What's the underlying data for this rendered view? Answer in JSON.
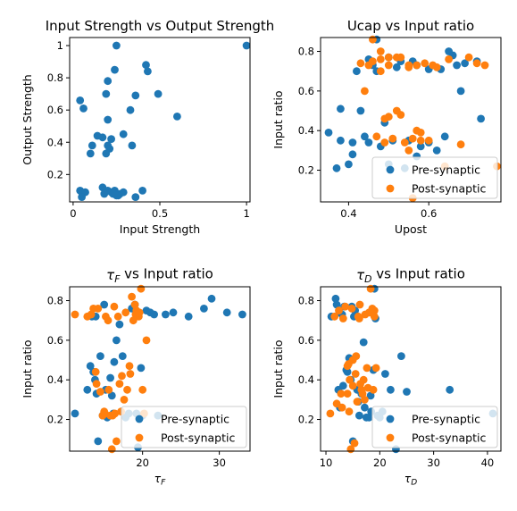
{
  "colors": {
    "pre": "#1f77b4",
    "post": "#ff7f0e"
  },
  "chart_data": [
    {
      "type": "scatter",
      "title": "Input Strength vs Output Strength",
      "xlabel": "Input Strength",
      "ylabel": "Output Strength",
      "xlim": [
        -0.02,
        1.02
      ],
      "ylim": [
        0.03,
        1.05
      ],
      "xticks": [
        0.0,
        0.5,
        1.0
      ],
      "yticks": [
        0.2,
        0.4,
        0.6,
        0.8,
        1.0
      ],
      "legend": null,
      "series": [
        {
          "color": "#1f77b4",
          "x": [
            0.25,
            1.0,
            0.42,
            0.43,
            0.24,
            0.2,
            0.49,
            0.36,
            0.19,
            0.6,
            0.33,
            0.04,
            0.06,
            0.29,
            0.14,
            0.2,
            0.17,
            0.22,
            0.2,
            0.11,
            0.1,
            0.34,
            0.21,
            0.19,
            0.04,
            0.05,
            0.07,
            0.05,
            0.17,
            0.2,
            0.22,
            0.24,
            0.27,
            0.29,
            0.26,
            0.18,
            0.36,
            0.4,
            0.23,
            0.25
          ],
          "y": [
            1.0,
            1.0,
            0.88,
            0.84,
            0.85,
            0.78,
            0.7,
            0.69,
            0.7,
            0.56,
            0.6,
            0.66,
            0.61,
            0.45,
            0.44,
            0.54,
            0.43,
            0.42,
            0.38,
            0.38,
            0.33,
            0.38,
            0.36,
            0.33,
            0.1,
            0.09,
            0.09,
            0.06,
            0.12,
            0.1,
            0.09,
            0.1,
            0.08,
            0.09,
            0.07,
            0.08,
            0.06,
            0.1,
            0.08,
            0.07
          ]
        }
      ]
    },
    {
      "type": "scatter",
      "title": "Ucap vs Input ratio",
      "xlabel": "Upost",
      "ylabel": "Input ratio",
      "xlim": [
        0.33,
        0.78
      ],
      "ylim": [
        0.04,
        0.87
      ],
      "xticks": [
        0.4,
        0.6
      ],
      "yticks": [
        0.2,
        0.4,
        0.6,
        0.8
      ],
      "legend": "bottom-right",
      "series": [
        {
          "name": "Pre-synaptic",
          "color": "#1f77b4",
          "x": [
            0.35,
            0.37,
            0.38,
            0.38,
            0.4,
            0.41,
            0.41,
            0.42,
            0.43,
            0.44,
            0.45,
            0.45,
            0.46,
            0.47,
            0.48,
            0.49,
            0.5,
            0.5,
            0.51,
            0.52,
            0.53,
            0.54,
            0.55,
            0.56,
            0.57,
            0.58,
            0.6,
            0.6,
            0.62,
            0.63,
            0.64,
            0.65,
            0.66,
            0.67,
            0.68,
            0.69,
            0.72,
            0.73,
            0.57,
            0.47
          ],
          "y": [
            0.39,
            0.21,
            0.35,
            0.51,
            0.23,
            0.34,
            0.28,
            0.7,
            0.5,
            0.37,
            0.34,
            0.76,
            0.73,
            0.86,
            0.32,
            0.44,
            0.23,
            0.77,
            0.35,
            0.72,
            0.75,
            0.21,
            0.35,
            0.75,
            0.73,
            0.32,
            0.71,
            0.34,
            0.3,
            0.71,
            0.37,
            0.8,
            0.78,
            0.73,
            0.6,
            0.74,
            0.75,
            0.46,
            0.27,
            0.7
          ]
        },
        {
          "name": "Post-synaptic",
          "color": "#ff7f0e",
          "x": [
            0.44,
            0.45,
            0.46,
            0.47,
            0.48,
            0.48,
            0.49,
            0.49,
            0.5,
            0.5,
            0.51,
            0.52,
            0.53,
            0.54,
            0.55,
            0.55,
            0.56,
            0.57,
            0.57,
            0.58,
            0.59,
            0.6,
            0.62,
            0.64,
            0.65,
            0.68,
            0.7,
            0.72,
            0.74,
            0.77,
            0.43,
            0.46,
            0.53,
            0.55,
            0.56,
            0.58,
            0.61,
            0.5,
            0.48,
            0.52
          ],
          "y": [
            0.6,
            0.73,
            0.86,
            0.37,
            0.8,
            0.7,
            0.46,
            0.34,
            0.77,
            0.73,
            0.36,
            0.5,
            0.48,
            0.34,
            0.3,
            0.72,
            0.06,
            0.73,
            0.4,
            0.39,
            0.74,
            0.35,
            0.72,
            0.22,
            0.76,
            0.33,
            0.77,
            0.74,
            0.73,
            0.22,
            0.74,
            0.75,
            0.77,
            0.73,
            0.36,
            0.35,
            0.73,
            0.47,
            0.76,
            0.77
          ]
        }
      ]
    },
    {
      "type": "scatter",
      "title": "τF vs Input ratio",
      "xlabel": "τF",
      "ylabel": "Input ratio",
      "xlim": [
        10.5,
        34
      ],
      "ylim": [
        0.04,
        0.87
      ],
      "xticks": [
        20,
        30
      ],
      "yticks": [
        0.2,
        0.4,
        0.6,
        0.8
      ],
      "legend": "bottom-right",
      "series": [
        {
          "name": "Pre-synaptic",
          "color": "#1f77b4",
          "x": [
            11.2,
            12.8,
            13.2,
            13.4,
            13.6,
            13.8,
            14.0,
            14.2,
            14.5,
            14.8,
            15.0,
            15.2,
            15.4,
            15.8,
            16.0,
            16.3,
            16.6,
            17.0,
            17.4,
            17.8,
            18.2,
            18.6,
            19.0,
            19.4,
            19.8,
            20.0,
            20.5,
            21.0,
            21.5,
            22.0,
            23.0,
            24.0,
            26.0,
            28.0,
            29.0,
            31.0,
            33.0,
            16.2,
            19.2,
            13.9
          ],
          "y": [
            0.23,
            0.35,
            0.47,
            0.72,
            0.44,
            0.4,
            0.33,
            0.09,
            0.52,
            0.22,
            0.78,
            0.35,
            0.21,
            0.41,
            0.32,
            0.49,
            0.6,
            0.68,
            0.52,
            0.21,
            0.23,
            0.76,
            0.78,
            0.06,
            0.46,
            0.22,
            0.75,
            0.74,
            0.73,
            0.22,
            0.73,
            0.74,
            0.72,
            0.76,
            0.81,
            0.74,
            0.73,
            0.23,
            0.23,
            0.72
          ]
        },
        {
          "name": "Post-synaptic",
          "color": "#ff7f0e",
          "x": [
            11.2,
            12.8,
            13.6,
            13.9,
            14.2,
            14.5,
            14.8,
            15.0,
            15.2,
            15.5,
            15.8,
            16.0,
            16.3,
            16.6,
            17.0,
            17.3,
            17.6,
            18.0,
            18.3,
            18.6,
            19.0,
            19.2,
            19.5,
            19.8,
            20.0,
            20.5,
            15.1,
            16.4,
            17.8,
            18.4,
            19.1,
            16.8,
            14.0,
            15.6,
            16.1,
            17.2,
            18.8,
            19.6,
            20.2,
            13.3
          ],
          "y": [
            0.73,
            0.72,
            0.76,
            0.44,
            0.76,
            0.34,
            0.22,
            0.24,
            0.72,
            0.7,
            0.22,
            0.05,
            0.77,
            0.09,
            0.38,
            0.42,
            0.3,
            0.35,
            0.47,
            0.82,
            0.78,
            0.75,
            0.72,
            0.86,
            0.35,
            0.6,
            0.23,
            0.23,
            0.74,
            0.43,
            0.73,
            0.72,
            0.38,
            0.35,
            0.22,
            0.24,
            0.7,
            0.74,
            0.23,
            0.73
          ]
        }
      ]
    },
    {
      "type": "scatter",
      "title": "τD vs Input ratio",
      "xlabel": "τD",
      "ylabel": "Input ratio",
      "xlim": [
        9,
        42.5
      ],
      "ylim": [
        0.04,
        0.87
      ],
      "xticks": [
        10,
        20,
        30,
        40
      ],
      "yticks": [
        0.2,
        0.4,
        0.6,
        0.8
      ],
      "legend": "bottom-right",
      "series": [
        {
          "name": "Pre-synaptic",
          "color": "#1f77b4",
          "x": [
            11.0,
            11.8,
            12.0,
            12.3,
            12.6,
            13.0,
            13.4,
            13.8,
            14.0,
            14.3,
            14.6,
            15.0,
            15.4,
            15.8,
            16.2,
            16.6,
            17.0,
            17.5,
            18.0,
            18.4,
            18.8,
            19.2,
            19.6,
            20.0,
            20.5,
            21.0,
            22.0,
            23.0,
            24.0,
            25.0,
            33.0,
            41.0,
            12.5,
            13.2,
            14.8,
            16.0,
            17.2,
            19.0,
            15.2,
            18.3
          ],
          "y": [
            0.72,
            0.81,
            0.78,
            0.35,
            0.26,
            0.73,
            0.77,
            0.45,
            0.44,
            0.51,
            0.4,
            0.09,
            0.75,
            0.35,
            0.22,
            0.33,
            0.59,
            0.21,
            0.21,
            0.24,
            0.45,
            0.71,
            0.22,
            0.21,
            0.24,
            0.43,
            0.35,
            0.05,
            0.52,
            0.34,
            0.35,
            0.23,
            0.74,
            0.37,
            0.77,
            0.29,
            0.26,
            0.86,
            0.72,
            0.32
          ]
        },
        {
          "name": "Post-synaptic",
          "color": "#ff7f0e",
          "x": [
            10.8,
            11.6,
            12.4,
            12.8,
            13.2,
            13.6,
            14.0,
            14.3,
            14.6,
            15.0,
            15.3,
            15.6,
            16.0,
            16.3,
            16.6,
            17.0,
            17.3,
            17.6,
            18.0,
            18.3,
            18.6,
            19.0,
            19.3,
            12.0,
            13.0,
            14.4,
            15.8,
            16.8,
            17.8,
            18.8,
            14.0,
            14.8,
            15.5,
            16.4,
            17.2,
            18.2,
            19.0,
            14.2,
            15.0,
            16.2
          ],
          "y": [
            0.23,
            0.72,
            0.75,
            0.33,
            0.71,
            0.77,
            0.47,
            0.24,
            0.05,
            0.5,
            0.08,
            0.52,
            0.72,
            0.78,
            0.35,
            0.4,
            0.73,
            0.46,
            0.74,
            0.86,
            0.76,
            0.75,
            0.46,
            0.28,
            0.26,
            0.4,
            0.29,
            0.33,
            0.36,
            0.35,
            0.33,
            0.76,
            0.43,
            0.38,
            0.3,
            0.74,
            0.72,
            0.48,
            0.37,
            0.71
          ]
        }
      ]
    }
  ]
}
